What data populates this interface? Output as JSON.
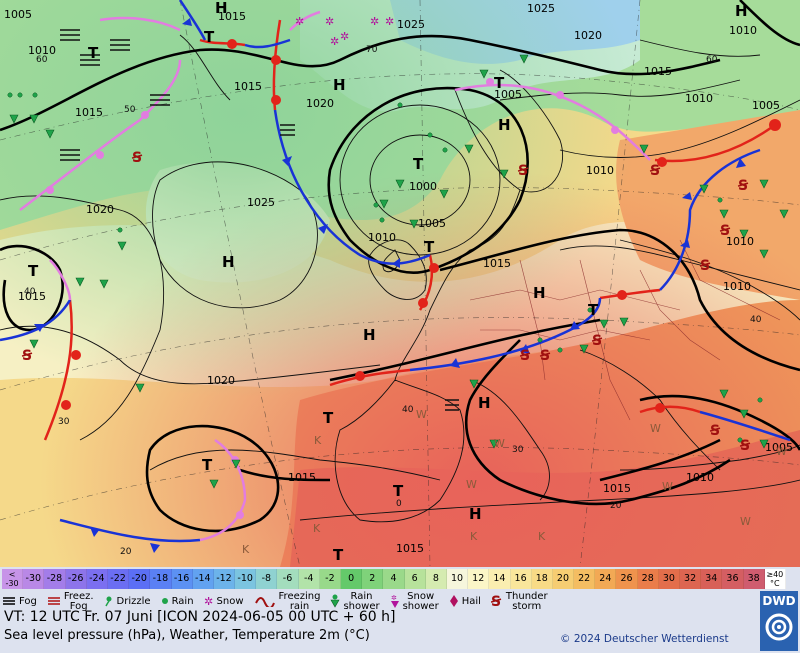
{
  "map": {
    "pressure_labels": [
      "1005",
      "1015",
      "1025",
      "1010",
      "1015",
      "1025",
      "1020",
      "1010",
      "1015",
      "1020",
      "1005",
      "1010",
      "1000",
      "1005",
      "1025",
      "1010",
      "1015",
      "1010",
      "1020",
      "1005",
      "1010",
      "1015",
      "1020",
      "1015",
      "1015",
      "1010",
      "1005",
      "1015",
      "1010",
      "1015"
    ],
    "centers": [
      "H",
      "T",
      "H",
      "T",
      "T",
      "H",
      "T",
      "H",
      "H",
      "T",
      "T",
      "H",
      "T",
      "T",
      "H",
      "H",
      "T",
      "T",
      "H",
      "T"
    ],
    "temperature_labels": [
      "60",
      "70",
      "50",
      "40",
      "30",
      "40",
      "20",
      "60",
      "40",
      "30",
      "0",
      "20"
    ],
    "weather_letters": [
      "W",
      "W",
      "W",
      "K",
      "K",
      "K",
      "W",
      "W",
      "W",
      "K",
      "W",
      "K"
    ]
  },
  "legend": {
    "scale_start": [
      "<",
      "-30"
    ],
    "scale_values": [
      "-30",
      "-28",
      "-26",
      "-24",
      "-22",
      "-20",
      "-18",
      "-16",
      "-14",
      "-12",
      "-10",
      "-8",
      "-6",
      "-4",
      "-2",
      "0",
      "2",
      "4",
      "6",
      "8",
      "10",
      "12",
      "14",
      "16",
      "18",
      "20",
      "22",
      "24",
      "26",
      "28",
      "30",
      "32",
      "34",
      "36",
      "38"
    ],
    "scale_end": [
      "≥40",
      "°C"
    ],
    "scale_colors": [
      "#b988e6",
      "#a37de9",
      "#8d74ea",
      "#7b6ff0",
      "#6b6ef2",
      "#5b6ff5",
      "#5a80f4",
      "#5c91f3",
      "#62a2f0",
      "#6cb3ea",
      "#7bc4e0",
      "#8fd2d1",
      "#a3ddbd",
      "#b2e3a9",
      "#98d98a",
      "#64c96a",
      "#7fd27a",
      "#9ad98a",
      "#b7e29b",
      "#d5ebb0",
      "#f6f6dc",
      "#fbf6c7",
      "#faeeb0",
      "#f9e69b",
      "#f8db86",
      "#f6cd72",
      "#f4bd62",
      "#f2a955",
      "#ef934d",
      "#ea7d4a",
      "#e36e4b",
      "#dd6551",
      "#d86058",
      "#d45e62",
      "#cf5c6f"
    ],
    "symbols": [
      {
        "icon": "fog-icon",
        "label": "Fog"
      },
      {
        "icon": "freezing-fog-icon",
        "label": "Freez.\nFog"
      },
      {
        "icon": "drizzle-icon",
        "label": "Drizzle"
      },
      {
        "icon": "rain-icon",
        "label": "Rain"
      },
      {
        "icon": "snow-icon",
        "label": "Snow"
      },
      {
        "icon": "freezing-rain-icon",
        "label": "Freezing\nrain"
      },
      {
        "icon": "rain-shower-icon",
        "label": "Rain\nshower"
      },
      {
        "icon": "snow-shower-icon",
        "label": "Snow\nshower"
      },
      {
        "icon": "hail-icon",
        "label": "Hail"
      },
      {
        "icon": "thunderstorm-icon",
        "label": "Thunder\nstorm"
      }
    ],
    "valid_time": "VT: 12 UTC Fr.  07 Juni [ICON 2024-06-05  00 UTC + 60 h]",
    "subtitle": "Sea level pressure (hPa), Weather, Temperature 2m (°C)",
    "copyright": "© 2024 Deutscher Wetterdienst",
    "logo_text": "DWD"
  }
}
